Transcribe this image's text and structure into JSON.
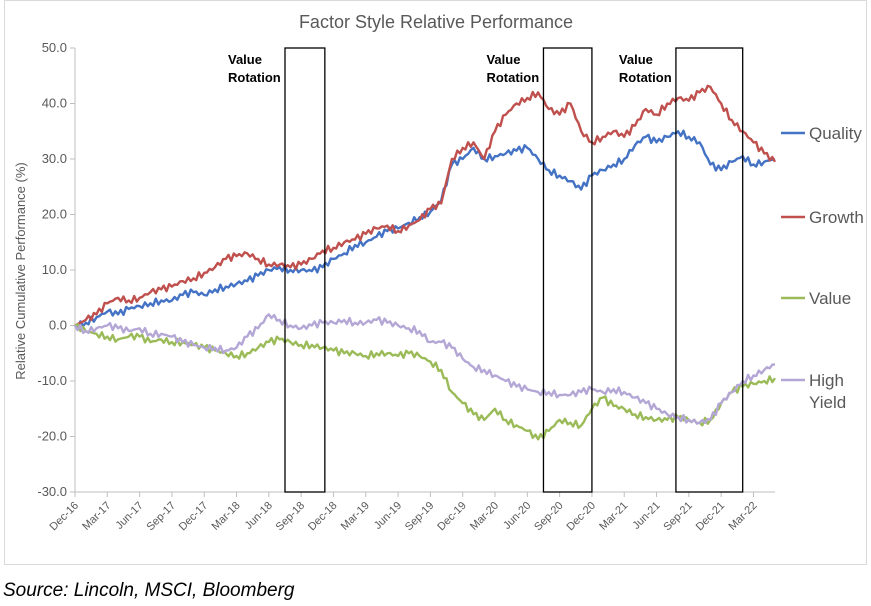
{
  "chart_data": {
    "type": "line",
    "title": "Factor Style Relative Performance",
    "ylabel": "Relative Cumulative Performance (%)",
    "xlabel": "",
    "ylim": [
      -30,
      50
    ],
    "yticks": [
      "50.0",
      "40.0",
      "30.0",
      "20.0",
      "10.0",
      "0.0",
      "-10.0",
      "-20.0",
      "-30.0"
    ],
    "xticks": [
      "Dec-16",
      "Mar-17",
      "Jun-17",
      "Sep-17",
      "Dec-17",
      "Mar-18",
      "Jun-18",
      "Sep-18",
      "Dec-18",
      "Mar-19",
      "Jun-19",
      "Sep-19",
      "Dec-19",
      "Mar-20",
      "Jun-20",
      "Sep-20",
      "Dec-20",
      "Mar-21",
      "Jun-21",
      "Sep-21",
      "Dec-21",
      "Mar-22"
    ],
    "x_range_months": [
      0,
      65
    ],
    "series": [
      {
        "name": "Quality",
        "legend": "Quality",
        "color": "#4472c4",
        "points": [
          [
            0,
            0
          ],
          [
            1,
            0.5
          ],
          [
            2,
            1.5
          ],
          [
            3,
            2.5
          ],
          [
            4,
            2
          ],
          [
            5,
            3
          ],
          [
            6,
            3.5
          ],
          [
            7,
            4
          ],
          [
            8,
            4.5
          ],
          [
            9,
            4.5
          ],
          [
            10,
            5.5
          ],
          [
            11,
            6
          ],
          [
            12,
            5.5
          ],
          [
            13,
            6.5
          ],
          [
            14,
            7
          ],
          [
            15,
            7.5
          ],
          [
            16,
            8
          ],
          [
            17,
            9
          ],
          [
            18,
            10
          ],
          [
            19,
            10.5
          ],
          [
            20,
            10
          ],
          [
            21,
            10
          ],
          [
            22,
            9.8
          ],
          [
            23,
            10.5
          ],
          [
            24,
            12
          ],
          [
            25,
            13
          ],
          [
            26,
            14.5
          ],
          [
            27,
            15
          ],
          [
            28,
            16
          ],
          [
            29,
            17
          ],
          [
            30,
            17.5
          ],
          [
            31,
            18.5
          ],
          [
            32,
            19.5
          ],
          [
            33,
            20.5
          ],
          [
            34,
            22.5
          ],
          [
            35,
            29
          ],
          [
            36,
            30
          ],
          [
            37,
            32
          ],
          [
            38,
            30
          ],
          [
            39,
            30.5
          ],
          [
            40,
            31
          ],
          [
            41,
            31.5
          ],
          [
            42,
            32
          ],
          [
            43,
            30
          ],
          [
            44,
            28
          ],
          [
            45,
            27
          ],
          [
            46,
            26
          ],
          [
            47,
            24.5
          ],
          [
            48,
            27
          ],
          [
            49,
            28
          ],
          [
            50,
            29
          ],
          [
            51,
            30
          ],
          [
            52,
            32.5
          ],
          [
            53,
            34
          ],
          [
            54,
            33
          ],
          [
            55,
            34
          ],
          [
            56,
            35
          ],
          [
            57,
            34
          ],
          [
            58,
            33
          ],
          [
            59,
            29
          ],
          [
            60,
            28
          ],
          [
            61,
            29.5
          ],
          [
            62,
            30.5
          ],
          [
            63,
            29
          ],
          [
            64,
            29.5
          ],
          [
            65,
            30
          ]
        ]
      },
      {
        "name": "Growth",
        "legend": "Growth",
        "color": "#c0504d",
        "points": [
          [
            0,
            0
          ],
          [
            1,
            1
          ],
          [
            2,
            2
          ],
          [
            3,
            4
          ],
          [
            4,
            5
          ],
          [
            5,
            4.5
          ],
          [
            6,
            5
          ],
          [
            7,
            6
          ],
          [
            8,
            6.5
          ],
          [
            9,
            7
          ],
          [
            10,
            8
          ],
          [
            11,
            8.5
          ],
          [
            12,
            9.5
          ],
          [
            13,
            10.5
          ],
          [
            14,
            12
          ],
          [
            15,
            12.5
          ],
          [
            16,
            13
          ],
          [
            17,
            12
          ],
          [
            18,
            11
          ],
          [
            19,
            11
          ],
          [
            20,
            10.5
          ],
          [
            21,
            11
          ],
          [
            22,
            12
          ],
          [
            23,
            13.5
          ],
          [
            24,
            14
          ],
          [
            25,
            15
          ],
          [
            26,
            15.5
          ],
          [
            27,
            16.5
          ],
          [
            28,
            17.5
          ],
          [
            29,
            18
          ],
          [
            30,
            17
          ],
          [
            31,
            18
          ],
          [
            32,
            19
          ],
          [
            33,
            21
          ],
          [
            34,
            22
          ],
          [
            35,
            30
          ],
          [
            36,
            32
          ],
          [
            37,
            33
          ],
          [
            38,
            30
          ],
          [
            39,
            35
          ],
          [
            40,
            38
          ],
          [
            41,
            40
          ],
          [
            42,
            41
          ],
          [
            43,
            42
          ],
          [
            44,
            39
          ],
          [
            45,
            38
          ],
          [
            46,
            40
          ],
          [
            47,
            35
          ],
          [
            48,
            33
          ],
          [
            49,
            34
          ],
          [
            50,
            35
          ],
          [
            51,
            34
          ],
          [
            52,
            36
          ],
          [
            53,
            39
          ],
          [
            54,
            38
          ],
          [
            55,
            40
          ],
          [
            56,
            41
          ],
          [
            57,
            40.5
          ],
          [
            58,
            42
          ],
          [
            59,
            43
          ],
          [
            60,
            40
          ],
          [
            61,
            37
          ],
          [
            62,
            35
          ],
          [
            63,
            33
          ],
          [
            64,
            31
          ],
          [
            65,
            29.5
          ]
        ]
      },
      {
        "name": "Value",
        "legend": "Value",
        "color": "#9bbb59",
        "points": [
          [
            0,
            0
          ],
          [
            1,
            -1
          ],
          [
            2,
            -1.5
          ],
          [
            3,
            -2
          ],
          [
            4,
            -2.5
          ],
          [
            5,
            -2
          ],
          [
            6,
            -2
          ],
          [
            7,
            -3
          ],
          [
            8,
            -2.5
          ],
          [
            9,
            -3
          ],
          [
            10,
            -3
          ],
          [
            11,
            -3.5
          ],
          [
            12,
            -4
          ],
          [
            13,
            -4.5
          ],
          [
            14,
            -5
          ],
          [
            15,
            -5.5
          ],
          [
            16,
            -5
          ],
          [
            17,
            -4
          ],
          [
            18,
            -3
          ],
          [
            19,
            -2.5
          ],
          [
            20,
            -3
          ],
          [
            21,
            -3.5
          ],
          [
            22,
            -3.5
          ],
          [
            23,
            -4
          ],
          [
            24,
            -4.5
          ],
          [
            25,
            -5
          ],
          [
            26,
            -5
          ],
          [
            27,
            -5.5
          ],
          [
            28,
            -5
          ],
          [
            29,
            -5
          ],
          [
            30,
            -5.5
          ],
          [
            31,
            -5
          ],
          [
            32,
            -5.5
          ],
          [
            33,
            -6.5
          ],
          [
            34,
            -8
          ],
          [
            35,
            -12
          ],
          [
            36,
            -14
          ],
          [
            37,
            -16
          ],
          [
            38,
            -17
          ],
          [
            39,
            -15
          ],
          [
            40,
            -17
          ],
          [
            41,
            -18
          ],
          [
            42,
            -19
          ],
          [
            43,
            -20.5
          ],
          [
            44,
            -19
          ],
          [
            45,
            -17
          ],
          [
            46,
            -17.5
          ],
          [
            47,
            -18
          ],
          [
            48,
            -15
          ],
          [
            49,
            -13
          ],
          [
            50,
            -14.5
          ],
          [
            51,
            -15
          ],
          [
            52,
            -16
          ],
          [
            53,
            -16.5
          ],
          [
            54,
            -17
          ],
          [
            55,
            -17
          ],
          [
            56,
            -16.5
          ],
          [
            57,
            -17
          ],
          [
            58,
            -17.5
          ],
          [
            59,
            -17
          ],
          [
            60,
            -14
          ],
          [
            61,
            -12
          ],
          [
            62,
            -11
          ],
          [
            63,
            -10.5
          ],
          [
            64,
            -10
          ],
          [
            65,
            -9.5
          ]
        ]
      },
      {
        "name": "High Yield",
        "legend": [
          "High",
          "Yield"
        ],
        "color": "#b4a7d6",
        "points": [
          [
            0,
            0
          ],
          [
            1,
            -1
          ],
          [
            2,
            -0.5
          ],
          [
            3,
            0
          ],
          [
            4,
            -0.5
          ],
          [
            5,
            -1
          ],
          [
            6,
            -0.5
          ],
          [
            7,
            -1.5
          ],
          [
            8,
            -1.5
          ],
          [
            9,
            -2
          ],
          [
            10,
            -3
          ],
          [
            11,
            -3.5
          ],
          [
            12,
            -4
          ],
          [
            13,
            -4
          ],
          [
            14,
            -4.5
          ],
          [
            15,
            -4
          ],
          [
            16,
            -2
          ],
          [
            17,
            -0.5
          ],
          [
            18,
            2
          ],
          [
            19,
            1
          ],
          [
            20,
            0
          ],
          [
            21,
            -0.5
          ],
          [
            22,
            0
          ],
          [
            23,
            0.5
          ],
          [
            24,
            0.5
          ],
          [
            25,
            1
          ],
          [
            26,
            0.5
          ],
          [
            27,
            0.5
          ],
          [
            28,
            1
          ],
          [
            29,
            0.5
          ],
          [
            30,
            0
          ],
          [
            31,
            -0.5
          ],
          [
            32,
            -1
          ],
          [
            33,
            -3
          ],
          [
            34,
            -3
          ],
          [
            35,
            -4
          ],
          [
            36,
            -6
          ],
          [
            37,
            -7.5
          ],
          [
            38,
            -8
          ],
          [
            39,
            -9
          ],
          [
            40,
            -10
          ],
          [
            41,
            -11
          ],
          [
            42,
            -11.5
          ],
          [
            43,
            -12
          ],
          [
            44,
            -12
          ],
          [
            45,
            -12.5
          ],
          [
            46,
            -12.5
          ],
          [
            47,
            -12
          ],
          [
            48,
            -11.5
          ],
          [
            49,
            -12
          ],
          [
            50,
            -11.5
          ],
          [
            51,
            -12
          ],
          [
            52,
            -13
          ],
          [
            53,
            -14
          ],
          [
            54,
            -15
          ],
          [
            55,
            -16
          ],
          [
            56,
            -16.5
          ],
          [
            57,
            -17
          ],
          [
            58,
            -17.5
          ],
          [
            59,
            -17
          ],
          [
            60,
            -14
          ],
          [
            61,
            -12
          ],
          [
            62,
            -10
          ],
          [
            63,
            -9
          ],
          [
            64,
            -8
          ],
          [
            65,
            -7
          ]
        ]
      }
    ],
    "annotations": [
      {
        "label": [
          "Value",
          "Rotation"
        ],
        "x_start": 19.5,
        "x_end": 23.2,
        "label_pos": "left"
      },
      {
        "label": [
          "Value",
          "Rotation"
        ],
        "x_start": 43.5,
        "x_end": 48.0,
        "label_pos": "left"
      },
      {
        "label": [
          "Value",
          "Rotation"
        ],
        "x_start": 55.8,
        "x_end": 62.0,
        "label_pos": "left"
      }
    ],
    "grid": false,
    "legend_position": "right"
  },
  "footer": {
    "source": "Source: Lincoln, MSCI, Bloomberg"
  }
}
